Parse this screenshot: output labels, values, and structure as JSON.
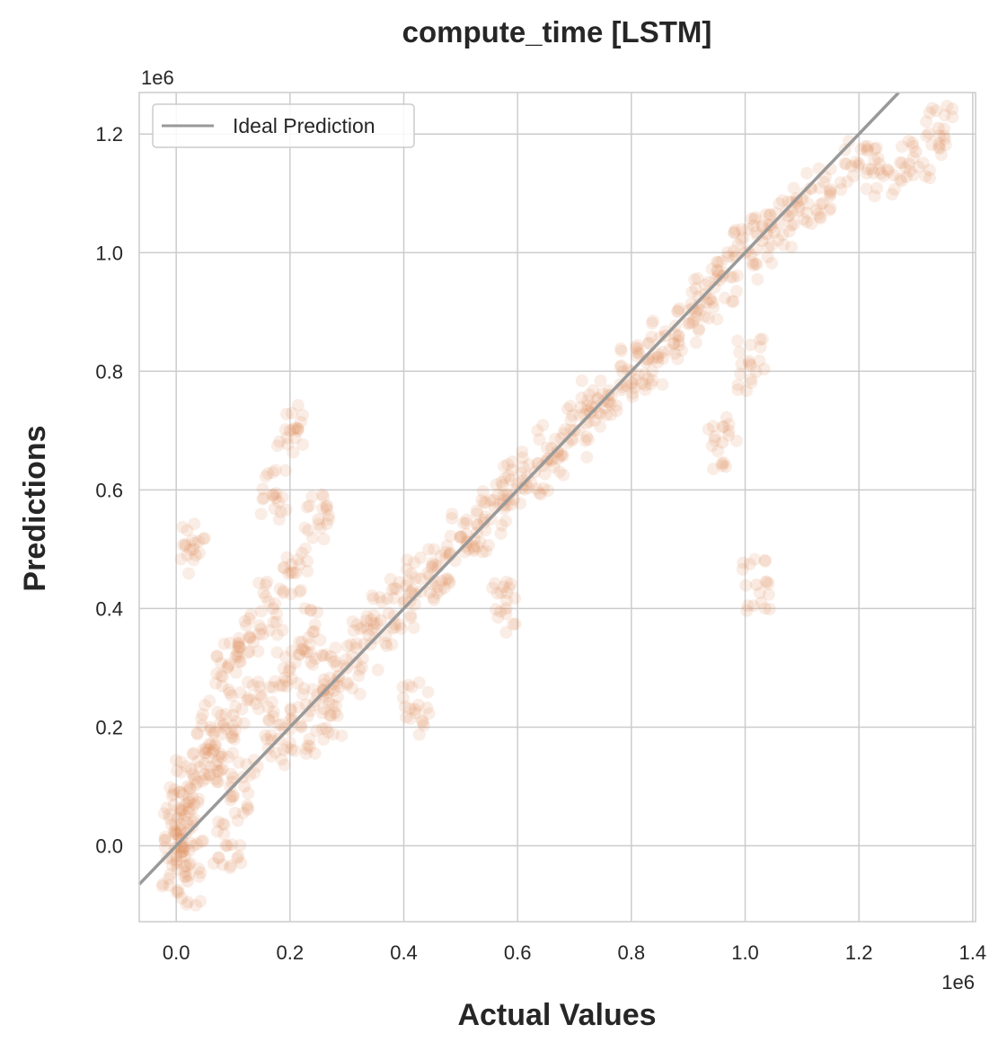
{
  "chart_data": {
    "type": "scatter",
    "title": "compute_time [LSTM]",
    "xlabel": "Actual Values",
    "ylabel": "Predictions",
    "x_offset_text": "1e6",
    "y_offset_text": "1e6",
    "xlim": [
      -0.065,
      1.405
    ],
    "ylim": [
      -0.128,
      1.27
    ],
    "x_ticks": [
      0.0,
      0.2,
      0.4,
      0.6,
      0.8,
      1.0,
      1.2,
      1.4
    ],
    "x_tick_labels": [
      "0.0",
      "0.2",
      "0.4",
      "0.6",
      "0.8",
      "1.0",
      "1.2",
      "1.4"
    ],
    "y_ticks": [
      0.0,
      0.2,
      0.4,
      0.6,
      0.8,
      1.0,
      1.2
    ],
    "y_tick_labels": [
      "0.0",
      "0.2",
      "0.4",
      "0.6",
      "0.8",
      "1.0",
      "1.2"
    ],
    "grid": true,
    "legend": {
      "position": "upper-left",
      "entries": [
        "Ideal Prediction"
      ]
    },
    "series": [
      {
        "type": "scatter",
        "color": "#dd8452",
        "alpha": 0.15,
        "points": [
          [
            0.0,
            0.02
          ],
          [
            0.01,
            0.06
          ],
          [
            0.02,
            0.1
          ],
          [
            0.03,
            0.04
          ],
          [
            0.05,
            0.12
          ],
          [
            0.06,
            0.2
          ],
          [
            0.08,
            0.15
          ],
          [
            0.09,
            0.3
          ],
          [
            0.1,
            0.22
          ],
          [
            0.12,
            0.1
          ],
          [
            0.13,
            0.35
          ],
          [
            0.15,
            0.25
          ],
          [
            0.17,
            0.4
          ],
          [
            0.18,
            0.18
          ],
          [
            0.2,
            0.3
          ],
          [
            0.21,
            0.46
          ],
          [
            0.22,
            0.2
          ],
          [
            0.24,
            0.36
          ],
          [
            0.25,
            0.55
          ],
          [
            0.26,
            0.28
          ],
          [
            0.27,
            0.22
          ],
          [
            0.3,
            0.3
          ],
          [
            0.33,
            0.34
          ],
          [
            0.36,
            0.38
          ],
          [
            0.4,
            0.41
          ],
          [
            0.43,
            0.45
          ],
          [
            0.46,
            0.47
          ],
          [
            0.5,
            0.52
          ],
          [
            0.53,
            0.54
          ],
          [
            0.56,
            0.57
          ],
          [
            0.6,
            0.61
          ],
          [
            0.63,
            0.63
          ],
          [
            0.66,
            0.67
          ],
          [
            0.7,
            0.7
          ],
          [
            0.73,
            0.74
          ],
          [
            0.76,
            0.76
          ],
          [
            0.8,
            0.8
          ],
          [
            0.83,
            0.82
          ],
          [
            0.86,
            0.86
          ],
          [
            0.9,
            0.88
          ],
          [
            0.93,
            0.93
          ],
          [
            0.96,
            0.96
          ],
          [
            1.0,
            1.0
          ],
          [
            1.03,
            1.02
          ],
          [
            1.06,
            1.05
          ],
          [
            1.1,
            1.09
          ],
          [
            1.15,
            1.1
          ],
          [
            1.2,
            1.15
          ],
          [
            1.25,
            1.14
          ],
          [
            1.3,
            1.17
          ],
          [
            1.34,
            1.21
          ],
          [
            0.2,
            0.7
          ],
          [
            1.01,
            0.81
          ],
          [
            1.02,
            0.44
          ],
          [
            0.96,
            0.68
          ],
          [
            0.58,
            0.4
          ],
          [
            0.42,
            0.23
          ],
          [
            0.03,
            0.5
          ],
          [
            0.17,
            0.59
          ],
          [
            0.0,
            -0.03
          ],
          [
            0.02,
            -0.06
          ],
          [
            0.09,
            0.0
          ]
        ]
      },
      {
        "type": "line",
        "name": "Ideal Prediction",
        "color": "#999999",
        "x": [
          -0.065,
          1.27
        ],
        "y": [
          -0.065,
          1.27
        ]
      }
    ]
  }
}
